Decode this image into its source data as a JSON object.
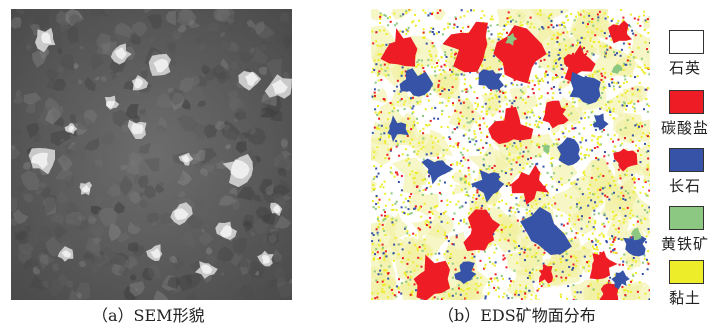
{
  "captions": {
    "a": "（a）SEM形貌",
    "b": "（b）EDS矿物面分布"
  },
  "legend": [
    {
      "label": "石英",
      "color": "#ffffff"
    },
    {
      "label": "碳酸盐",
      "color": "#ee1c24"
    },
    {
      "label": "长石",
      "color": "#3653a8"
    },
    {
      "label": "黄铁矿",
      "color": "#8dc882"
    },
    {
      "label": "黏土",
      "color": "#eded29"
    }
  ]
}
